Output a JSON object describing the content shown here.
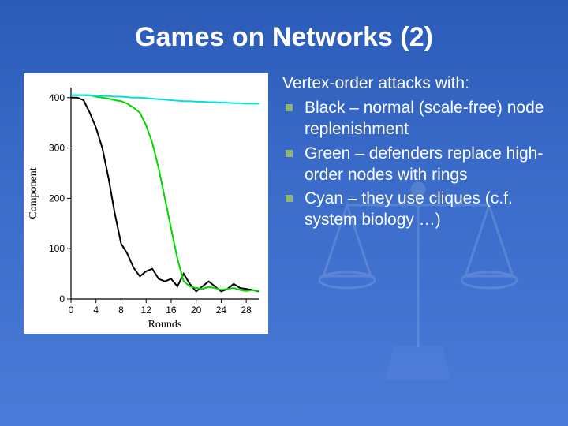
{
  "title": "Games on Networks (2)",
  "heading": "Vertex-order attacks with:",
  "bullets": [
    "Black – normal (scale-free) node replenishment",
    "Green – defenders replace high-order nodes with rings",
    "Cyan – they use cliques (c.f. system biology …)"
  ],
  "bullet_marker_color": "#8fb56e",
  "chart": {
    "type": "line",
    "background_color": "#ffffff",
    "axis_color": "#000000",
    "xlabel": "Rounds",
    "ylabel": "Component",
    "label_fontsize": 14,
    "tick_fontsize": 12,
    "xlim": [
      0,
      30
    ],
    "ylim": [
      0,
      420
    ],
    "xticks": [
      0,
      4,
      8,
      12,
      16,
      20,
      24,
      28
    ],
    "yticks": [
      0,
      100,
      200,
      300,
      400
    ],
    "line_width": 2,
    "series": [
      {
        "name": "black",
        "color": "#000000",
        "x": [
          0,
          1,
          2,
          3,
          4,
          5,
          6,
          7,
          8,
          9,
          10,
          11,
          12,
          13,
          14,
          15,
          16,
          17,
          18,
          19,
          20,
          21,
          22,
          23,
          24,
          25,
          26,
          27,
          28,
          29,
          30
        ],
        "y": [
          400,
          400,
          395,
          370,
          340,
          300,
          240,
          170,
          110,
          90,
          62,
          45,
          55,
          60,
          40,
          35,
          40,
          25,
          50,
          30,
          15,
          25,
          35,
          25,
          15,
          20,
          30,
          22,
          20,
          18,
          15
        ]
      },
      {
        "name": "green",
        "color": "#00d800",
        "x": [
          0,
          1,
          2,
          3,
          4,
          5,
          6,
          7,
          8,
          9,
          10,
          11,
          12,
          13,
          14,
          15,
          16,
          17,
          18,
          19,
          20,
          21,
          22,
          23,
          24,
          25,
          26,
          27,
          28,
          29,
          30
        ],
        "y": [
          405,
          405,
          405,
          405,
          402,
          400,
          398,
          395,
          393,
          388,
          380,
          370,
          345,
          310,
          260,
          200,
          140,
          80,
          35,
          25,
          22,
          20,
          24,
          22,
          18,
          20,
          22,
          18,
          16,
          18,
          16
        ]
      },
      {
        "name": "cyan",
        "color": "#00e0e0",
        "x": [
          0,
          1,
          2,
          3,
          4,
          5,
          6,
          7,
          8,
          9,
          10,
          11,
          12,
          13,
          14,
          15,
          16,
          17,
          18,
          19,
          20,
          21,
          22,
          23,
          24,
          25,
          26,
          27,
          28,
          29,
          30
        ],
        "y": [
          405,
          405,
          405,
          404,
          404,
          403,
          403,
          402,
          402,
          401,
          400,
          400,
          399,
          398,
          397,
          396,
          395,
          394,
          393,
          393,
          392,
          392,
          391,
          391,
          390,
          390,
          389,
          389,
          388,
          388,
          388
        ]
      }
    ]
  },
  "colors": {
    "background_top": "#2a5bb8",
    "background_bottom": "#4a7bd8",
    "title_text": "#ffffff",
    "body_text": "#ffffff"
  }
}
